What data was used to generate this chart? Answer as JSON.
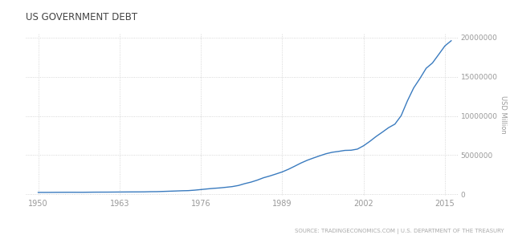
{
  "title": "US GOVERNMENT DEBT",
  "ylabel": "USD Million",
  "source_text": "SOURCE: TRADINGECONOMICS.COM | U.S. DEPARTMENT OF THE TREASURY",
  "x_ticks": [
    1950,
    1963,
    1976,
    1989,
    2002,
    2015
  ],
  "y_ticks": [
    0,
    5000000,
    10000000,
    15000000,
    20000000
  ],
  "y_tick_labels": [
    "0",
    "5000000",
    "10000000",
    "15000000",
    "20000000"
  ],
  "xlim": [
    1948,
    2017
  ],
  "ylim": [
    -200000,
    20500000
  ],
  "line_color": "#3a7bbf",
  "line_width": 1.0,
  "bg_color": "#ffffff",
  "grid_color": "#cccccc",
  "title_color": "#444444",
  "axis_label_color": "#999999",
  "source_color": "#aaaaaa",
  "data_years": [
    1950,
    1951,
    1952,
    1953,
    1954,
    1955,
    1956,
    1957,
    1958,
    1959,
    1960,
    1961,
    1962,
    1963,
    1964,
    1965,
    1966,
    1967,
    1968,
    1969,
    1970,
    1971,
    1972,
    1973,
    1974,
    1975,
    1976,
    1977,
    1978,
    1979,
    1980,
    1981,
    1982,
    1983,
    1984,
    1985,
    1986,
    1987,
    1988,
    1989,
    1990,
    1991,
    1992,
    1993,
    1994,
    1995,
    1996,
    1997,
    1998,
    1999,
    2000,
    2001,
    2002,
    2003,
    2004,
    2005,
    2006,
    2007,
    2008,
    2009,
    2010,
    2011,
    2012,
    2013,
    2014,
    2015,
    2016
  ],
  "data_values": [
    257357,
    255222,
    259105,
    266071,
    270812,
    274366,
    272751,
    270527,
    279667,
    287465,
    290862,
    292648,
    298201,
    305860,
    311712,
    317273,
    319907,
    326218,
    347578,
    353720,
    380921,
    408176,
    435936,
    466291,
    483893,
    541925,
    620433,
    698840,
    771544,
    826519,
    907701,
    994845,
    1137300,
    1371700,
    1564600,
    1817500,
    2120600,
    2346100,
    2601300,
    2867500,
    3206300,
    3598200,
    4001800,
    4351200,
    4643700,
    4920600,
    5181900,
    5369700,
    5478200,
    5605700,
    5628700,
    5769900,
    6198400,
    6760000,
    7379100,
    7932700,
    8506973,
    8950744,
    10024725,
    11909829,
    13561623,
    14764222,
    16066241,
    16738184,
    17824071,
    18922179,
    19573445
  ]
}
